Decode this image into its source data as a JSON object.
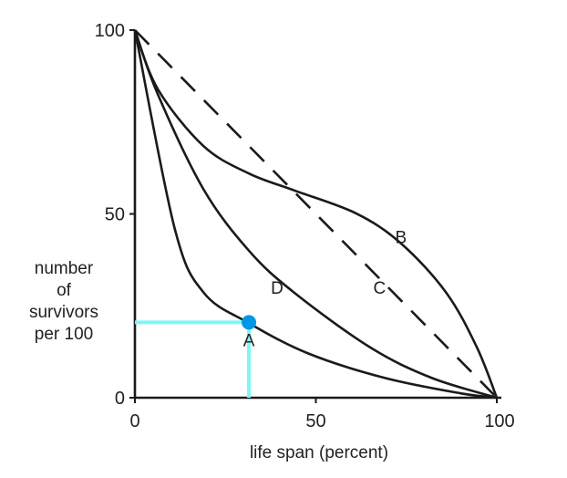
{
  "chart_data": {
    "type": "line",
    "title": "",
    "xlabel": "life span (percent)",
    "ylabel": [
      "number",
      "of",
      "survivors",
      "per 100"
    ],
    "xlim": [
      0,
      100
    ],
    "ylim": [
      0,
      100
    ],
    "xticks": [
      "0",
      "50",
      "100"
    ],
    "yticks": [
      "0",
      "50",
      "100"
    ],
    "grid": false,
    "series": [
      {
        "name": "A",
        "style": "solid",
        "x": [
          0,
          11,
          19,
          31.5,
          48,
          69,
          90,
          100
        ],
        "y": [
          100,
          46,
          28.6,
          20.3,
          12,
          5.4,
          1.2,
          0
        ]
      },
      {
        "name": "D",
        "style": "solid",
        "x": [
          0,
          6.3,
          18.9,
          31.5,
          44,
          65,
          82,
          100
        ],
        "y": [
          100,
          82.6,
          56.8,
          40,
          28.6,
          13.7,
          5.4,
          0
        ]
      },
      {
        "name": "B",
        "style": "solid",
        "x": [
          0,
          6.3,
          18.9,
          31.5,
          44,
          61,
          73.5,
          86,
          94.5,
          100
        ],
        "y": [
          100,
          84,
          68.5,
          61,
          56.4,
          50.2,
          42,
          28.6,
          13.7,
          0
        ]
      },
      {
        "name": "C",
        "style": "dashed",
        "x": [
          0,
          100
        ],
        "y": [
          100,
          0
        ]
      }
    ],
    "annotations": [
      {
        "text": "A",
        "x": 31.5,
        "y": 16
      },
      {
        "text": "B",
        "x": 73.5,
        "y": 44
      },
      {
        "text": "C",
        "x": 67.6,
        "y": 30.3
      },
      {
        "text": "D",
        "x": 39.3,
        "y": 30.3
      }
    ],
    "highlight": {
      "x": 31.5,
      "y": 20.5,
      "color": "#0096e6",
      "guide_color": "#7ef6f6"
    }
  }
}
